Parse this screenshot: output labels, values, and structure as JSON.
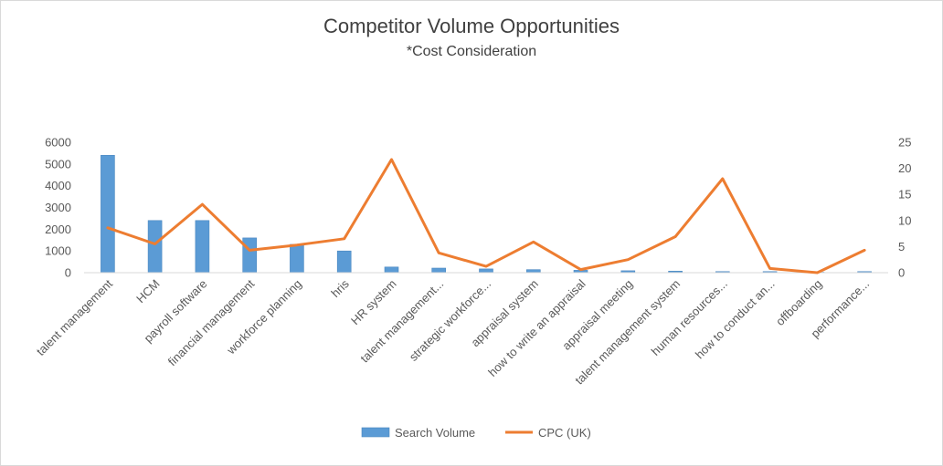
{
  "chart_data": {
    "type": "bar",
    "title": "Competitor Volume Opportunities",
    "subtitle": "*Cost Consideration",
    "categories": [
      "talent management",
      "HCM",
      "payroll software",
      "financial management",
      "workforce planning",
      "hris",
      "HR system",
      "talent management...",
      "strategic workforce...",
      "appraisal system",
      "how to write an appraisal",
      "appraisal meeting",
      "talent management system",
      "human resources...",
      "how to conduct an...",
      "offboarding",
      "performance..."
    ],
    "series": [
      {
        "name": "Search Volume",
        "type": "bar",
        "axis": "left",
        "color": "#5b9bd5",
        "values": [
          5400,
          2400,
          2400,
          1600,
          1300,
          1000,
          260,
          210,
          170,
          140,
          110,
          90,
          70,
          50,
          50,
          20,
          50
        ]
      },
      {
        "name": "CPC (UK)",
        "type": "line",
        "axis": "right",
        "color": "#ed7d31",
        "values": [
          8.6,
          5.5,
          13.1,
          4.3,
          5.3,
          6.5,
          21.7,
          3.8,
          1.2,
          5.9,
          0.6,
          2.5,
          6.9,
          18.0,
          0.8,
          0.0,
          4.3
        ]
      }
    ],
    "y_left": {
      "ylim": [
        0,
        6000
      ],
      "ticks": [
        "0",
        "1000",
        "2000",
        "3000",
        "4000",
        "5000",
        "6000"
      ]
    },
    "y_right": {
      "ylim": [
        0,
        25
      ],
      "ticks": [
        "0",
        "5",
        "10",
        "15",
        "20",
        "25"
      ]
    },
    "grid": false,
    "legend": "bottom"
  }
}
